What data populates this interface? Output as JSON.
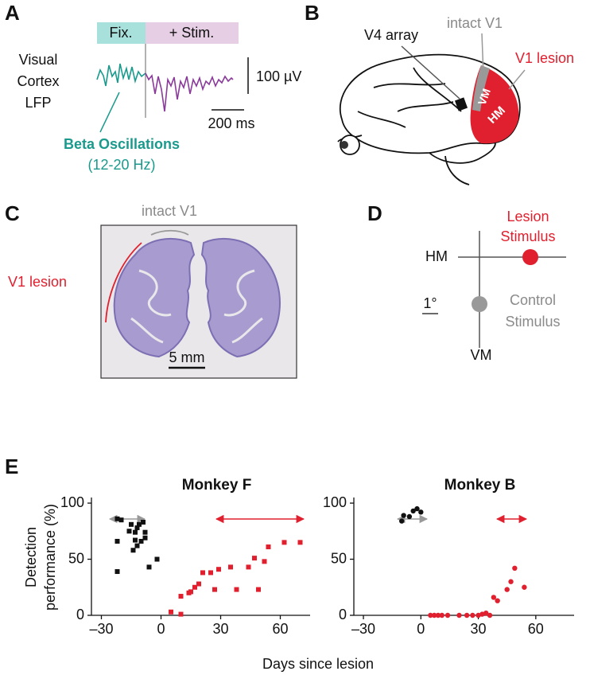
{
  "panel_a": {
    "label": "A",
    "fix": "Fix.",
    "stim": "+ Stim.",
    "signal": [
      "Visual",
      "Cortex",
      "LFP"
    ],
    "amplitude_scale": "100 µV",
    "time_scale": "200 ms",
    "annotation": "Beta Oscillations",
    "annotation_range": "(12-20 Hz)"
  },
  "panel_b": {
    "label": "B",
    "v4": "V4 array",
    "intact": "intact V1",
    "lesion": "V1 lesion",
    "vm": "VM",
    "hm": "HM"
  },
  "panel_c": {
    "label": "C",
    "intact": "intact V1",
    "lesion": "V1 lesion",
    "scale": "5 mm"
  },
  "panel_d": {
    "label": "D",
    "lesion_stimulus": [
      "Lesion",
      "Stimulus"
    ],
    "hm": "HM",
    "degree": "1°",
    "control_stimulus": [
      "Control",
      "Stimulus"
    ],
    "vm": "VM"
  },
  "panel_e": {
    "label": "E",
    "y_label": [
      "Detection",
      "performance (%)"
    ],
    "x_label": "Days since lesion"
  },
  "chart_data": [
    {
      "type": "scatter",
      "title": "Monkey F",
      "xlim": [
        -35,
        75
      ],
      "ylim": [
        0,
        105
      ],
      "xticks": [
        {
          "value": -30,
          "label": "–30"
        },
        0,
        30,
        60
      ],
      "yticks": [
        0,
        50,
        100
      ],
      "series": [
        {
          "color": "#111111",
          "marker": "square",
          "x": [
            -22,
            -20,
            -22,
            -22,
            -15,
            -13,
            -11,
            -9,
            -8,
            -13,
            -12,
            -14,
            -10,
            -8,
            -6,
            -2,
            -16,
            -12
          ],
          "values": [
            86,
            85,
            66,
            39,
            81,
            74,
            81,
            83,
            74,
            67,
            62,
            58,
            66,
            69,
            43,
            50,
            75,
            78
          ]
        },
        {
          "color": "#e0202e",
          "marker": "square",
          "x": [
            5,
            10,
            10,
            14,
            15,
            17,
            19,
            21,
            25,
            27,
            29,
            35,
            38,
            44,
            47,
            49,
            52,
            54,
            62,
            70
          ],
          "values": [
            3,
            1,
            17,
            20,
            21,
            25,
            28,
            38,
            38,
            23,
            41,
            43,
            23,
            43,
            51,
            23,
            48,
            61,
            65,
            65
          ]
        }
      ]
    },
    {
      "type": "scatter",
      "title": "Monkey B",
      "xlim": [
        -35,
        80
      ],
      "ylim": [
        0,
        105
      ],
      "xticks": [
        {
          "value": -30,
          "label": "–30"
        },
        0,
        30,
        60
      ],
      "yticks": [
        0,
        50,
        100
      ],
      "series": [
        {
          "color": "#111111",
          "marker": "circle",
          "x": [
            -10,
            -9,
            -6,
            -4,
            -2,
            0
          ],
          "values": [
            84,
            89,
            88,
            93,
            95,
            92
          ]
        },
        {
          "color": "#e0202e",
          "marker": "circle",
          "x": [
            5,
            7,
            9,
            11,
            14,
            20,
            24,
            27,
            30,
            32,
            34,
            36,
            38,
            40,
            45,
            47,
            49,
            54
          ],
          "values": [
            0,
            0,
            0,
            0,
            0,
            0,
            0,
            0,
            0,
            1,
            2,
            0,
            16,
            13,
            23,
            30,
            42,
            25
          ]
        }
      ]
    }
  ]
}
